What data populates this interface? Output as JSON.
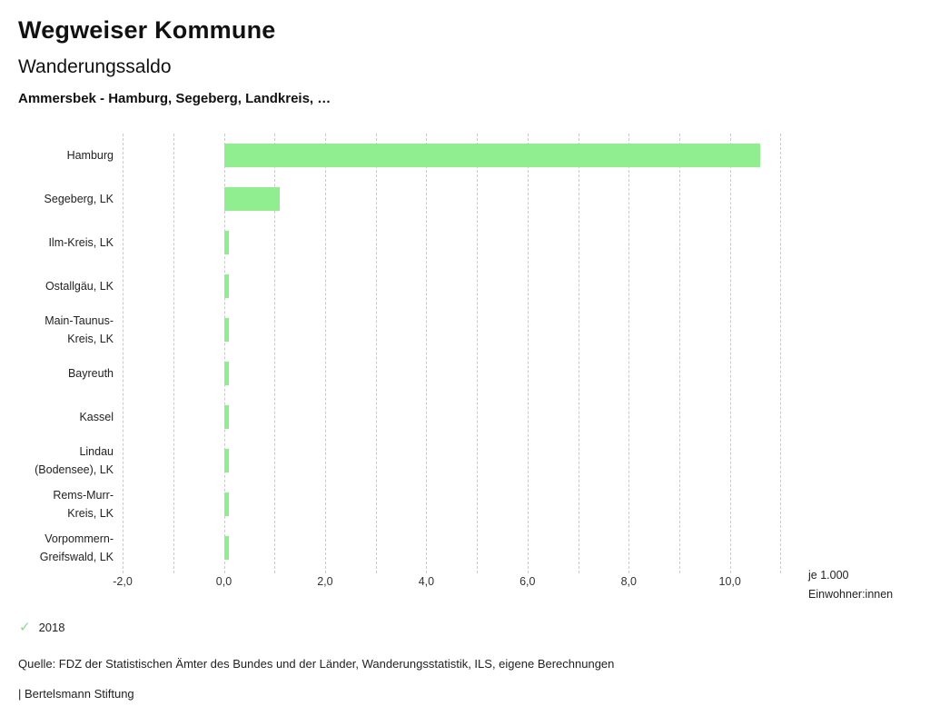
{
  "header": {
    "title": "Wegweiser Kommune",
    "subtitle": "Wanderungssaldo",
    "selection": "Ammersbek - Hamburg, Segeberg, Landkreis, …"
  },
  "chart_data": {
    "type": "bar",
    "orientation": "horizontal",
    "title": "Wanderungssaldo",
    "categories": [
      "Hamburg",
      "Segeberg, LK",
      "Ilm-Kreis, LK",
      "Ostallgäu, LK",
      "Main-Taunus-Kreis, LK",
      "Bayreuth",
      "Kassel",
      "Lindau (Bodensee), LK",
      "Rems-Murr-Kreis, LK",
      "Vorpommern-Greifswald, LK"
    ],
    "category_label_lines": [
      [
        "Hamburg"
      ],
      [
        "Segeberg, LK"
      ],
      [
        "Ilm-Kreis, LK"
      ],
      [
        "Ostallgäu, LK"
      ],
      [
        "Main-Taunus-",
        "Kreis, LK"
      ],
      [
        "Bayreuth"
      ],
      [
        "Kassel"
      ],
      [
        "Lindau",
        "(Bodensee), LK"
      ],
      [
        "Rems-Murr-",
        "Kreis, LK"
      ],
      [
        "Vorpommern-",
        "Greifswald, LK"
      ]
    ],
    "values": [
      10.6,
      1.1,
      0.1,
      0.1,
      0.1,
      0.1,
      0.1,
      0.1,
      0.1,
      0.1
    ],
    "year": "2018",
    "xlim": [
      -2.0,
      11.1
    ],
    "grid_interval": 1.0,
    "grid_on": true,
    "xticks": [
      {
        "value": -2,
        "label": "-2,0"
      },
      {
        "value": 0,
        "label": "0,0"
      },
      {
        "value": 2,
        "label": "2,0"
      },
      {
        "value": 4,
        "label": "4,0"
      },
      {
        "value": 6,
        "label": "6,0"
      },
      {
        "value": 8,
        "label": "8,0"
      },
      {
        "value": 10,
        "label": "10,0"
      }
    ],
    "xlabel": "je 1.000 Einwohner:innen",
    "ylabel": ""
  },
  "axis_note": {
    "line1": "je 1.000",
    "line2": "Einwohner:innen"
  },
  "legend": {
    "check_symbol": "✓",
    "year": "2018"
  },
  "colors": {
    "bar": "#90ee90",
    "check": "#8fd694",
    "gridline": "#c9c9c9"
  },
  "footer": {
    "source": "Quelle: FDZ der Statistischen Ämter des Bundes und der Länder, Wanderungsstatistik, ILS, eigene Berechnungen",
    "attribution": "| Bertelsmann Stiftung"
  }
}
